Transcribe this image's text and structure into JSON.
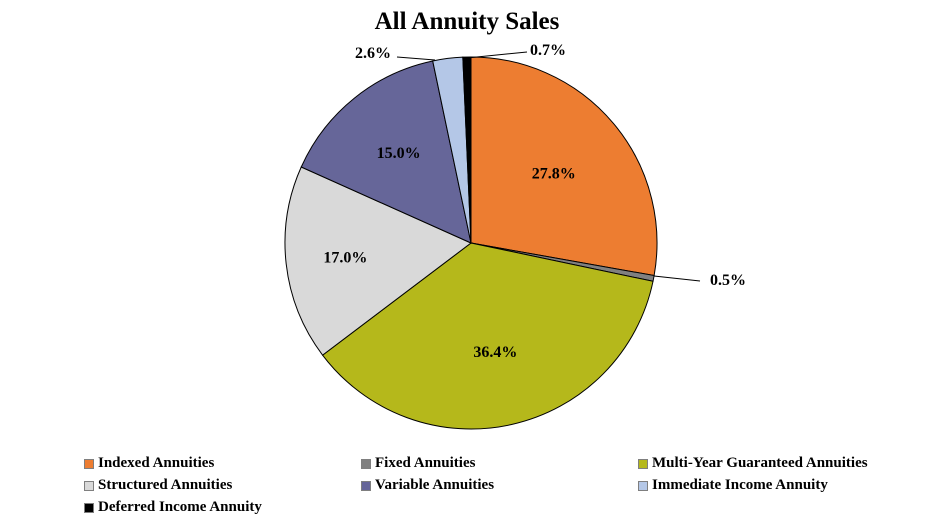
{
  "chart_data": {
    "type": "pie",
    "title": "All Annuity Sales",
    "slices": [
      {
        "name": "Indexed Annuities",
        "value": 27.8,
        "label": "27.8%",
        "color": "#ED7D31"
      },
      {
        "name": "Fixed Annuities",
        "value": 0.5,
        "label": "0.5%",
        "color": "#808080"
      },
      {
        "name": "Multi-Year Guaranteed Annuities",
        "value": 36.4,
        "label": "36.4%",
        "color": "#B5B81B"
      },
      {
        "name": "Structured Annuities",
        "value": 17.0,
        "label": "17.0%",
        "color": "#D9D9D9"
      },
      {
        "name": "Variable Annuities",
        "value": 15.0,
        "label": "15.0%",
        "color": "#666699"
      },
      {
        "name": "Immediate Income Annuity",
        "value": 2.6,
        "label": "2.6%",
        "color": "#B4C7E7"
      },
      {
        "name": "Deferred Income Annuity",
        "value": 0.7,
        "label": "0.7%",
        "color": "#000000"
      }
    ],
    "legend": "bottom"
  }
}
